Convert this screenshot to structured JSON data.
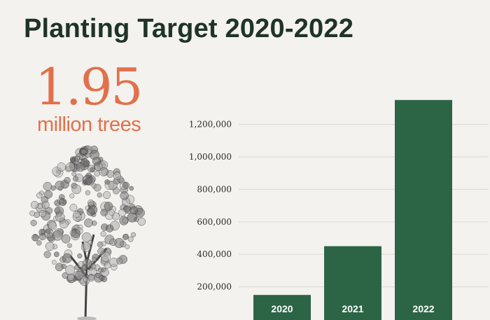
{
  "header": {
    "title": "Planting Target 2020-2022"
  },
  "highlight": {
    "value": "1.95",
    "unit": "million trees"
  },
  "colors": {
    "background": "#f3f2ee",
    "bar": "#2c6446",
    "accent": "#e2704c",
    "title": "#1f3329",
    "grid": "#dedcd6"
  },
  "icons": {
    "illustration": "tree-illustration"
  },
  "chart_data": {
    "type": "bar",
    "title": "Planting Target 2020-2022",
    "categories": [
      "2020",
      "2021",
      "2022"
    ],
    "values": [
      150000,
      450000,
      1350000
    ],
    "yticks": [
      200000,
      400000,
      600000,
      800000,
      1000000,
      1200000
    ],
    "ytick_labels": [
      "200,000",
      "400,000",
      "600,000",
      "800,000",
      "1,000,000",
      "1,200,000"
    ],
    "ylim": [
      0,
      1400000
    ],
    "grid": true,
    "category_labels_inside_bars": true,
    "xlabel": "",
    "ylabel": ""
  }
}
